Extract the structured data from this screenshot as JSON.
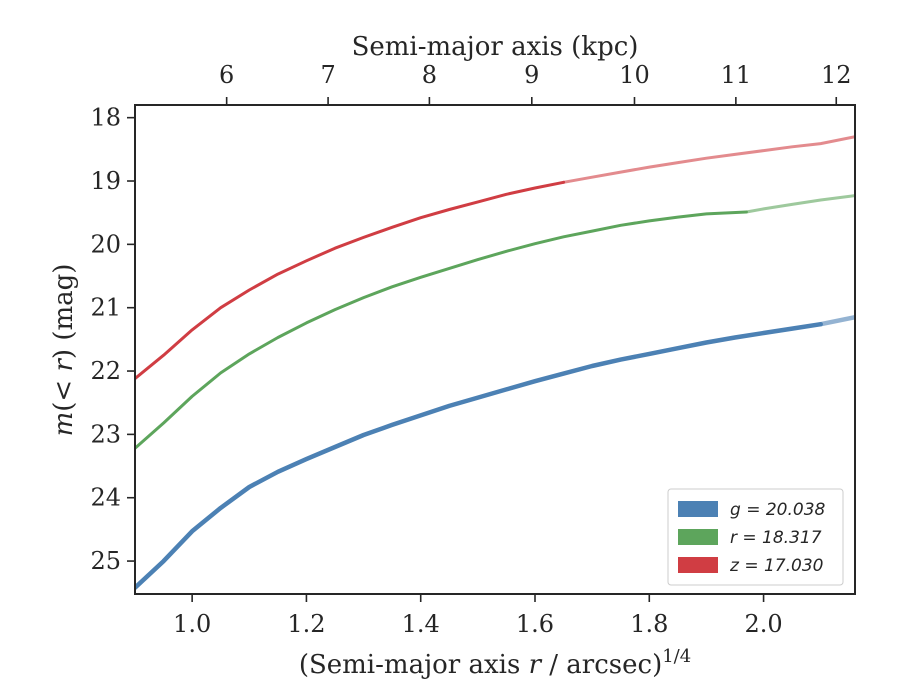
{
  "chart_data": {
    "type": "line",
    "xlabel": "(Semi-major axis r / arcsec)^1/4",
    "ylabel": "m(< r) (mag)",
    "top_xlabel": "Semi-major axis (kpc)",
    "xlim": [
      0.9,
      2.16
    ],
    "ylim": [
      25.52,
      17.8
    ],
    "y_inverted": true,
    "x_ticks": [
      1.0,
      1.2,
      1.4,
      1.6,
      1.8,
      2.0
    ],
    "x_tick_labels": [
      "1.0",
      "1.2",
      "1.4",
      "1.6",
      "1.8",
      "2.0"
    ],
    "y_ticks": [
      18,
      19,
      20,
      21,
      22,
      23,
      24,
      25
    ],
    "y_tick_labels": [
      "18",
      "19",
      "20",
      "21",
      "22",
      "23",
      "24",
      "25"
    ],
    "top_ticks": [
      {
        "label": "6",
        "x": 1.0604
      },
      {
        "label": "7",
        "x": 1.2379
      },
      {
        "label": "8",
        "x": 1.4152
      },
      {
        "label": "9",
        "x": 1.5944
      },
      {
        "label": "10",
        "x": 1.7741
      },
      {
        "label": "11",
        "x": 1.9515
      },
      {
        "label": "12",
        "x": 2.1272
      }
    ],
    "grid": false,
    "legend_position": "bottom-right",
    "series": [
      {
        "name": "g = 20.038",
        "color": "#4C81B4",
        "x": [
          0.9,
          0.95,
          1.0,
          1.05,
          1.1,
          1.15,
          1.2,
          1.25,
          1.3,
          1.35,
          1.4,
          1.45,
          1.5,
          1.55,
          1.6,
          1.65,
          1.7,
          1.75,
          1.8,
          1.85,
          1.9,
          1.95,
          2.0,
          2.05,
          2.1,
          2.16
        ],
        "y": [
          25.42,
          25.0,
          24.53,
          24.16,
          23.83,
          23.59,
          23.39,
          23.2,
          23.01,
          22.85,
          22.7,
          22.55,
          22.42,
          22.29,
          22.16,
          22.04,
          21.92,
          21.82,
          21.73,
          21.64,
          21.55,
          21.47,
          21.4,
          21.33,
          21.26,
          21.15
        ],
        "faded_from_x": 2.1
      },
      {
        "name": "r = 18.317",
        "color": "#5DA55C",
        "x": [
          0.9,
          0.95,
          1.0,
          1.05,
          1.1,
          1.15,
          1.2,
          1.25,
          1.3,
          1.35,
          1.4,
          1.45,
          1.5,
          1.55,
          1.6,
          1.65,
          1.7,
          1.75,
          1.8,
          1.85,
          1.9,
          1.97,
          2.0,
          2.05,
          2.1,
          2.16
        ],
        "y": [
          23.22,
          22.82,
          22.4,
          22.03,
          21.73,
          21.47,
          21.24,
          21.03,
          20.84,
          20.67,
          20.52,
          20.38,
          20.24,
          20.11,
          19.99,
          19.88,
          19.79,
          19.7,
          19.63,
          19.57,
          19.52,
          19.49,
          19.44,
          19.37,
          19.3,
          19.23
        ],
        "faded_from_x": 1.97
      },
      {
        "name": "z = 17.030",
        "color": "#D03D43",
        "x": [
          0.9,
          0.95,
          1.0,
          1.05,
          1.1,
          1.15,
          1.2,
          1.25,
          1.3,
          1.35,
          1.4,
          1.45,
          1.5,
          1.55,
          1.6,
          1.65,
          1.7,
          1.75,
          1.8,
          1.85,
          1.9,
          1.95,
          2.0,
          2.05,
          2.1,
          2.16
        ],
        "y": [
          22.12,
          21.75,
          21.35,
          21.0,
          20.72,
          20.47,
          20.26,
          20.06,
          19.89,
          19.73,
          19.58,
          19.45,
          19.33,
          19.21,
          19.11,
          19.02,
          18.94,
          18.86,
          18.78,
          18.71,
          18.64,
          18.58,
          18.52,
          18.46,
          18.41,
          18.3
        ],
        "faded_from_x": 1.65
      }
    ]
  }
}
